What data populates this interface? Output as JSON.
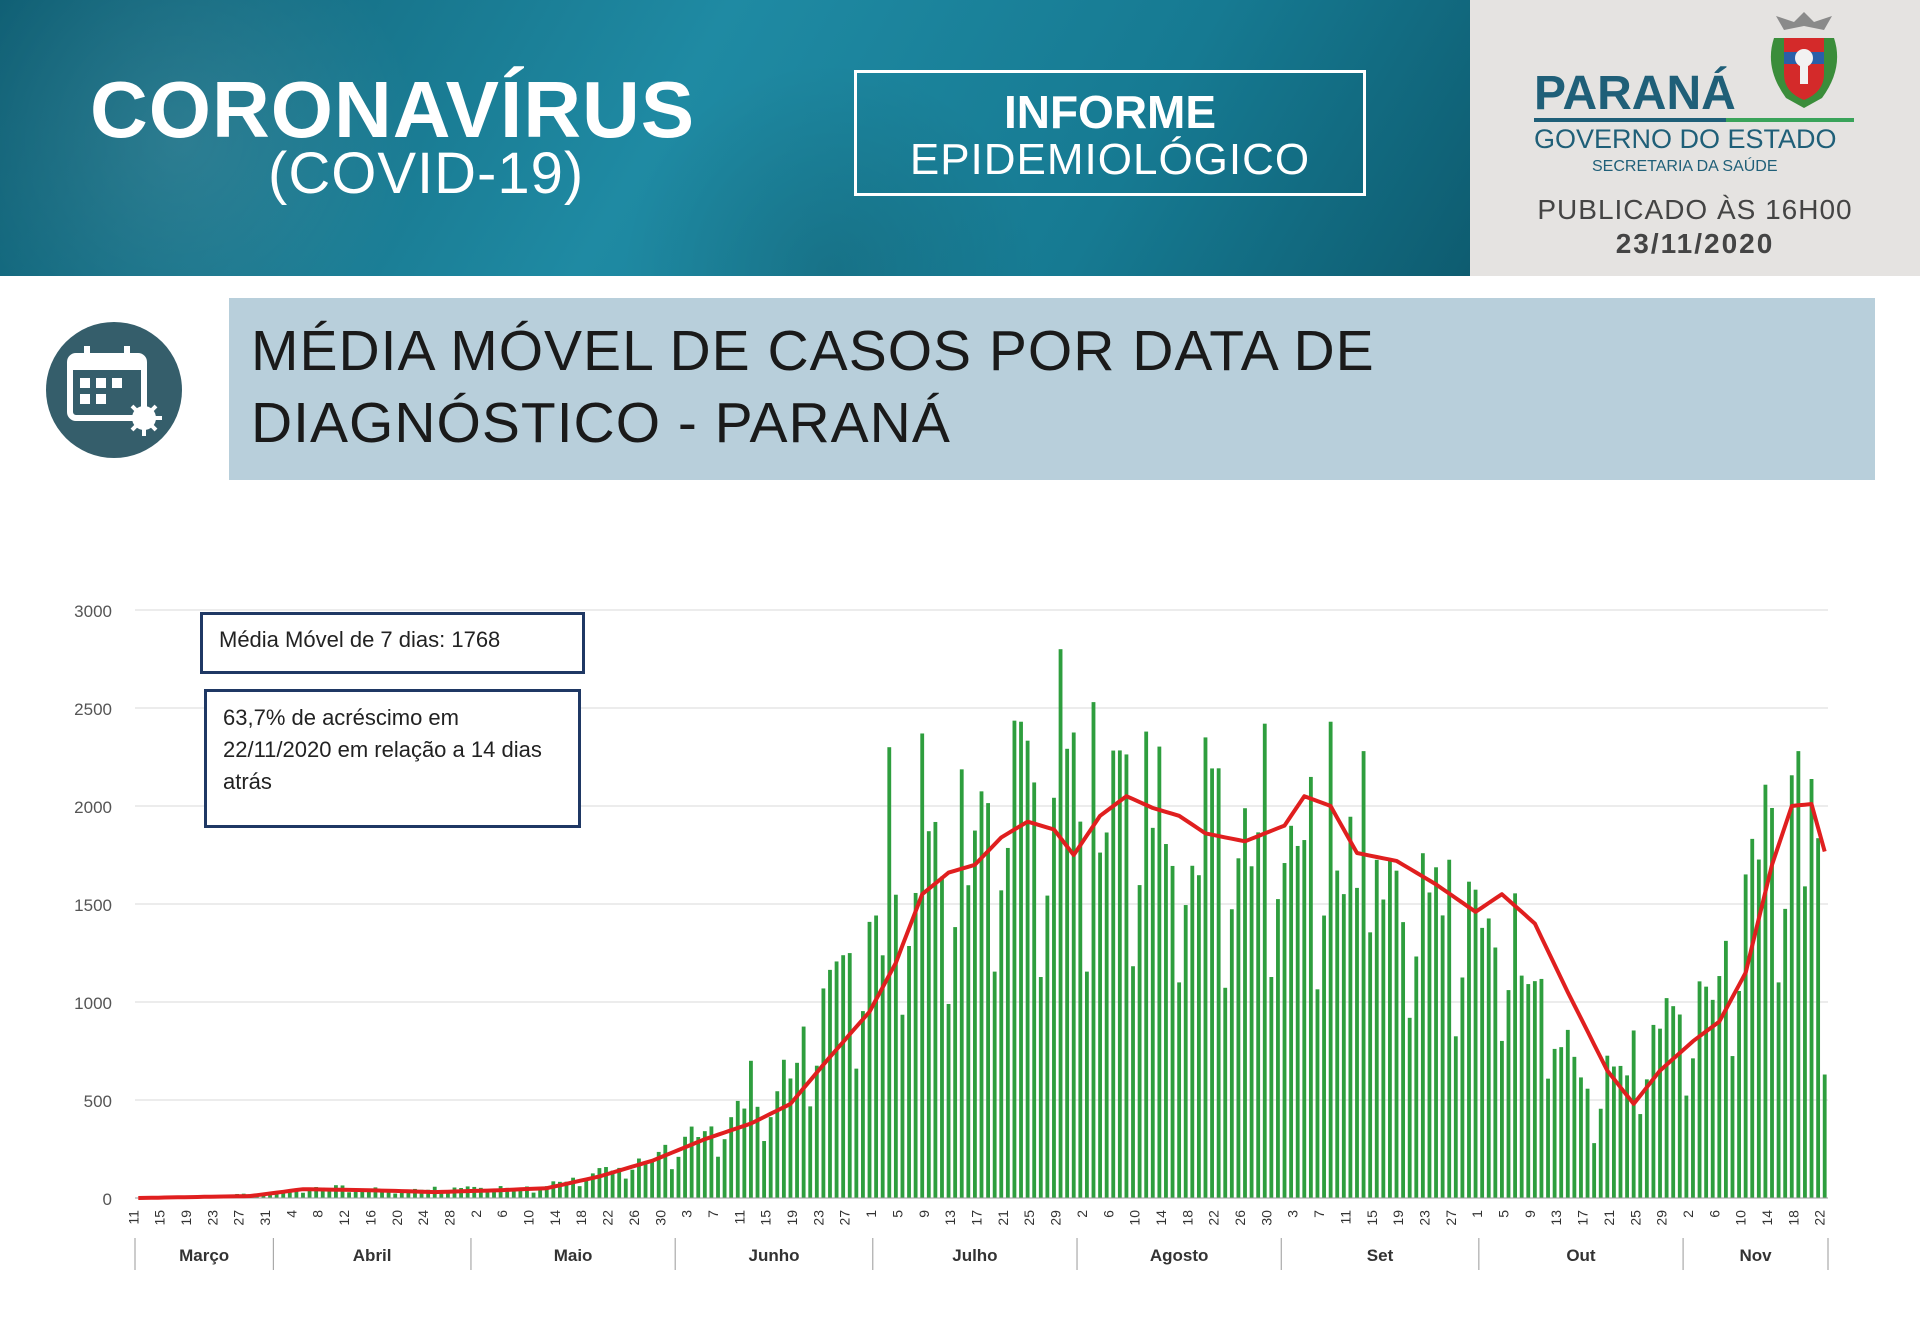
{
  "header": {
    "title": "CORONAVÍRUS",
    "subtitle": "(COVID-19)",
    "report_line1": "INFORME",
    "report_line2": "EPIDEMIOLÓGICO",
    "state_name": "PARANÁ",
    "government": "GOVERNO DO ESTADO",
    "department": "SECRETARIA DA SAÚDE",
    "published_label": "PUBLICADO ÀS 16H00",
    "published_date": "23/11/2020"
  },
  "section": {
    "title_line1": "MÉDIA MÓVEL DE CASOS POR DATA DE",
    "title_line2": "DIAGNÓSTICO - PARANÁ"
  },
  "annotations": {
    "moving_average": "Média Móvel de 7 dias: 1768",
    "increase_text": "63,7% de acréscimo em 22/11/2020  em relação a 14 dias atrás"
  },
  "colors": {
    "bars": "#2e9e3e",
    "line": "#e01f1f",
    "banner": "#1b7a92",
    "title_box": "#b8cfdb",
    "note_border": "#1f3864"
  },
  "icons": [
    "calendar-virus-icon",
    "parana-crest-icon"
  ],
  "chart_data": {
    "type": "bar",
    "ylim": [
      0,
      3000
    ],
    "yticks": [
      0,
      500,
      1000,
      1500,
      2000,
      2500,
      3000
    ],
    "start_date": "2020-03-11",
    "end_date": "2020-11-22",
    "month_labels": [
      "Março",
      "Abril",
      "Maio",
      "Junho",
      "Julho",
      "Agosto",
      "Set",
      "Out",
      "Nov"
    ],
    "series": [
      {
        "kind": "bar",
        "keypoints": [
          [
            "2020-03-11",
            2
          ],
          [
            "2020-03-20",
            5
          ],
          [
            "2020-03-31",
            30
          ],
          [
            "2020-04-08",
            60
          ],
          [
            "2020-04-20",
            40
          ],
          [
            "2020-05-01",
            60
          ],
          [
            "2020-05-10",
            50
          ],
          [
            "2020-05-16",
            100
          ],
          [
            "2020-05-24",
            180
          ],
          [
            "2020-06-01",
            280
          ],
          [
            "2020-06-08",
            400
          ],
          [
            "2020-06-15",
            550
          ],
          [
            "2020-06-21",
            850
          ],
          [
            "2020-06-28",
            1200
          ],
          [
            "2020-07-05",
            1700
          ],
          [
            "2020-07-12",
            1800
          ],
          [
            "2020-07-19",
            2100
          ],
          [
            "2020-07-26",
            2050
          ],
          [
            "2020-08-02",
            2100
          ],
          [
            "2020-08-09",
            2150
          ],
          [
            "2020-08-16",
            2000
          ],
          [
            "2020-08-23",
            1950
          ],
          [
            "2020-08-30",
            2050
          ],
          [
            "2020-09-05",
            1950
          ],
          [
            "2020-09-12",
            1850
          ],
          [
            "2020-09-19",
            1700
          ],
          [
            "2020-09-26",
            1500
          ],
          [
            "2020-10-03",
            1500
          ],
          [
            "2020-10-10",
            1200
          ],
          [
            "2020-10-17",
            550
          ],
          [
            "2020-10-24",
            750
          ],
          [
            "2020-10-31",
            950
          ],
          [
            "2020-11-04",
            950
          ],
          [
            "2020-11-10",
            1500
          ],
          [
            "2020-11-15",
            2000
          ],
          [
            "2020-11-22",
            1768
          ]
        ],
        "spikes": [
          [
            "2020-07-29",
            2800
          ],
          [
            "2020-07-03",
            2300
          ],
          [
            "2020-07-08",
            2370
          ],
          [
            "2020-07-23",
            2430
          ],
          [
            "2020-08-03",
            2530
          ],
          [
            "2020-08-20",
            2350
          ],
          [
            "2020-08-29",
            2420
          ],
          [
            "2020-09-08",
            2430
          ],
          [
            "2020-09-13",
            2280
          ],
          [
            "2020-11-18",
            2280
          ],
          [
            "2020-11-22",
            630
          ],
          [
            "2020-06-12",
            700
          ],
          [
            "2020-10-18",
            280
          ]
        ]
      },
      {
        "kind": "line",
        "keypoints": [
          [
            "2020-03-11",
            0
          ],
          [
            "2020-03-28",
            10
          ],
          [
            "2020-04-05",
            45
          ],
          [
            "2020-04-15",
            40
          ],
          [
            "2020-04-25",
            30
          ],
          [
            "2020-05-05",
            40
          ],
          [
            "2020-05-12",
            50
          ],
          [
            "2020-05-20",
            110
          ],
          [
            "2020-05-28",
            190
          ],
          [
            "2020-06-05",
            300
          ],
          [
            "2020-06-12",
            380
          ],
          [
            "2020-06-18",
            480
          ],
          [
            "2020-06-24",
            720
          ],
          [
            "2020-06-30",
            950
          ],
          [
            "2020-07-04",
            1200
          ],
          [
            "2020-07-08",
            1550
          ],
          [
            "2020-07-12",
            1660
          ],
          [
            "2020-07-16",
            1700
          ],
          [
            "2020-07-20",
            1840
          ],
          [
            "2020-07-24",
            1920
          ],
          [
            "2020-07-28",
            1880
          ],
          [
            "2020-07-31",
            1750
          ],
          [
            "2020-08-04",
            1950
          ],
          [
            "2020-08-08",
            2050
          ],
          [
            "2020-08-12",
            1990
          ],
          [
            "2020-08-16",
            1950
          ],
          [
            "2020-08-20",
            1860
          ],
          [
            "2020-08-26",
            1820
          ],
          [
            "2020-09-01",
            1900
          ],
          [
            "2020-09-04",
            2050
          ],
          [
            "2020-09-08",
            2000
          ],
          [
            "2020-09-12",
            1760
          ],
          [
            "2020-09-18",
            1720
          ],
          [
            "2020-09-24",
            1600
          ],
          [
            "2020-09-30",
            1460
          ],
          [
            "2020-10-04",
            1550
          ],
          [
            "2020-10-09",
            1400
          ],
          [
            "2020-10-14",
            1050
          ],
          [
            "2020-10-20",
            650
          ],
          [
            "2020-10-24",
            480
          ],
          [
            "2020-10-28",
            650
          ],
          [
            "2020-11-02",
            800
          ],
          [
            "2020-11-06",
            900
          ],
          [
            "2020-11-10",
            1150
          ],
          [
            "2020-11-14",
            1700
          ],
          [
            "2020-11-17",
            2000
          ],
          [
            "2020-11-20",
            2010
          ],
          [
            "2020-11-22",
            1768
          ]
        ]
      }
    ]
  }
}
